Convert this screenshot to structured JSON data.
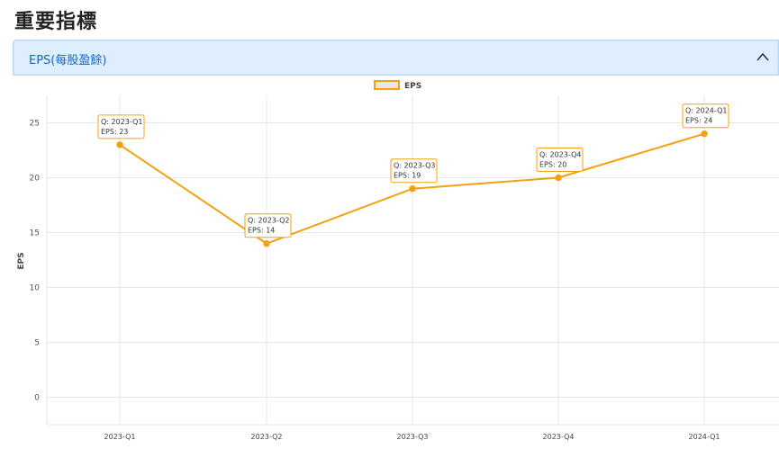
{
  "page": {
    "title": "重要指標"
  },
  "accordion": {
    "title": "EPS(每股盈餘)",
    "state": "expanded",
    "toggle_icon": "chevron-up-icon"
  },
  "chart_data": {
    "type": "line",
    "title": "",
    "xlabel": "",
    "ylabel": "EPS",
    "categories": [
      "2023-Q1",
      "2023-Q2",
      "2023-Q3",
      "2023-Q4",
      "2024-Q1"
    ],
    "series": [
      {
        "name": "EPS",
        "values": [
          23,
          14,
          19,
          20,
          24
        ],
        "color": "#f5a00f"
      }
    ],
    "ylim": [
      -2.5,
      27.5
    ],
    "yticks": [
      0,
      5,
      10,
      15,
      20,
      25
    ],
    "grid": true,
    "legend": "top-center",
    "tooltips": [
      {
        "line1": "Q: 2023-Q1",
        "line2": "EPS: 23"
      },
      {
        "line1": "Q: 2023-Q2",
        "line2": "EPS: 14"
      },
      {
        "line1": "Q: 2023-Q3",
        "line2": "EPS: 19"
      },
      {
        "line1": "Q: 2023-Q4",
        "line2": "EPS: 20"
      },
      {
        "line1": "Q: 2024-Q1",
        "line2": "EPS: 24"
      }
    ]
  }
}
